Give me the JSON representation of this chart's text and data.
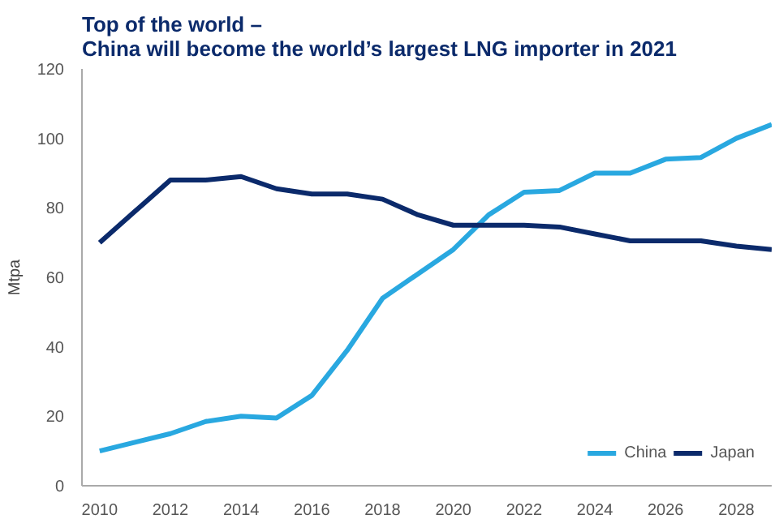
{
  "chart_data": {
    "type": "line",
    "title": "Top of the world –\nChina will become the world’s largest LNG importer in 2021",
    "ylabel": "Mtpa",
    "x": [
      2010,
      2011,
      2012,
      2013,
      2014,
      2015,
      2016,
      2017,
      2018,
      2019,
      2020,
      2021,
      2022,
      2023,
      2024,
      2025,
      2026,
      2027,
      2028,
      2029
    ],
    "series": [
      {
        "name": "China",
        "color": "#29a8e0",
        "values": [
          10,
          12.5,
          15,
          18.5,
          20,
          19.5,
          26,
          39,
          54,
          61,
          68,
          78,
          84.5,
          85,
          90,
          90,
          94,
          94.5,
          100,
          104
        ]
      },
      {
        "name": "Japan",
        "color": "#0b2a6b",
        "values": [
          70,
          79,
          88,
          88,
          89,
          85.5,
          84,
          84,
          82.5,
          78,
          75,
          75,
          75,
          74.5,
          72.5,
          70.5,
          70.5,
          70.5,
          69,
          68
        ]
      }
    ],
    "xlim": [
      2009.5,
      2029
    ],
    "xticks": [
      2010,
      2012,
      2014,
      2016,
      2018,
      2020,
      2022,
      2024,
      2026,
      2028
    ],
    "ylim": [
      0,
      120
    ],
    "yticks": [
      0,
      20,
      40,
      60,
      80,
      100,
      120
    ],
    "grid": false,
    "legend": "bottom right",
    "marker": "none",
    "line_style": "solid"
  }
}
